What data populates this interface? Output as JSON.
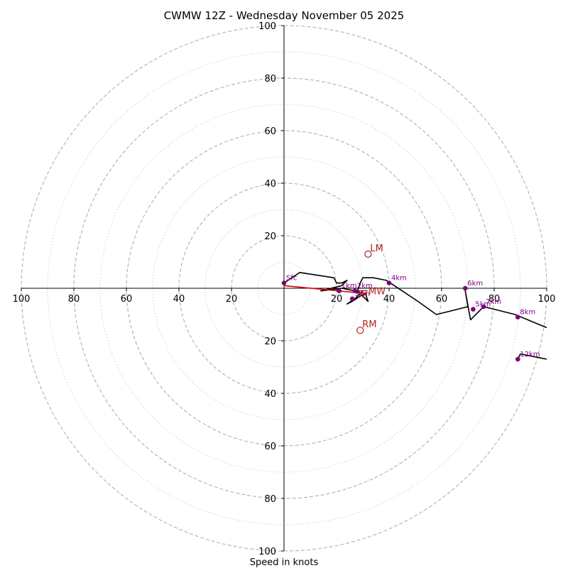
{
  "chart_data": {
    "type": "hodograph",
    "title": "CWMW 12Z - Wednesday November 05 2025",
    "xlabel": "Speed in knots",
    "max_speed": 100,
    "ring_major": [
      20,
      40,
      60,
      80,
      100
    ],
    "ring_minor": [
      10,
      30,
      50,
      70,
      90
    ],
    "x_tick_labels": [
      "100",
      "80",
      "60",
      "40",
      "20",
      "20",
      "40",
      "60",
      "80",
      "100"
    ],
    "x_tick_values": [
      -100,
      -80,
      -60,
      -40,
      -20,
      20,
      40,
      60,
      80,
      100
    ],
    "y_tick_labels": [
      "100",
      "80",
      "60",
      "40",
      "20",
      "20",
      "40",
      "60",
      "80",
      "100"
    ],
    "y_tick_values": [
      100,
      80,
      60,
      40,
      20,
      -20,
      -40,
      -60,
      -80,
      -100
    ],
    "colors": {
      "profile": "#000000",
      "shear_vector": "#dd0000",
      "height_points": "#800080",
      "storm_motion": "#b22222",
      "grid": "#b0b0b0"
    },
    "profile": [
      [
        0,
        2
      ],
      [
        6,
        6
      ],
      [
        19,
        4
      ],
      [
        20,
        2
      ],
      [
        22,
        2
      ],
      [
        24,
        3
      ],
      [
        22,
        1
      ],
      [
        14,
        -1
      ],
      [
        22,
        0
      ],
      [
        27,
        -1
      ],
      [
        29,
        -2
      ],
      [
        30,
        -1
      ],
      [
        27,
        -4
      ],
      [
        24,
        -6
      ],
      [
        26,
        -5
      ],
      [
        29,
        -3
      ],
      [
        31,
        -2
      ],
      [
        32,
        -5
      ],
      [
        30,
        -3
      ],
      [
        28,
        -1
      ],
      [
        29,
        2
      ],
      [
        30,
        4
      ],
      [
        34,
        4
      ],
      [
        39,
        3
      ],
      [
        45,
        -1
      ],
      [
        51,
        -5
      ],
      [
        58,
        -10
      ],
      [
        70,
        -7
      ],
      [
        69,
        -1
      ],
      [
        71,
        -12
      ],
      [
        76,
        -7
      ],
      [
        88,
        -10
      ],
      [
        100,
        -15
      ]
    ],
    "profile_upper": [
      [
        100,
        -27
      ],
      [
        90,
        -25
      ],
      [
        89,
        -27
      ]
    ],
    "height_points": [
      {
        "label": "Sfc",
        "u": 0,
        "v": 2
      },
      {
        "label": "1km",
        "u": 21,
        "v": -1
      },
      {
        "label": "2km",
        "u": 27,
        "v": -1
      },
      {
        "label": "3km",
        "u": 26,
        "v": -4
      },
      {
        "label": "4km",
        "u": 40,
        "v": 2
      },
      {
        "label": "5km",
        "u": 72,
        "v": -8
      },
      {
        "label": "6km",
        "u": 69,
        "v": 0
      },
      {
        "label": "7km",
        "u": 76,
        "v": -7
      },
      {
        "label": "8km",
        "u": 89,
        "v": -11
      },
      {
        "label": "12km",
        "u": 89,
        "v": -27
      }
    ],
    "shear_vector": {
      "from": [
        0,
        1
      ],
      "to": [
        31,
        -2
      ]
    },
    "storm_motion": [
      {
        "label": "LM",
        "u": 32,
        "v": 13
      },
      {
        "label": "MW",
        "u": 30,
        "v": -2
      },
      {
        "label": "RM",
        "u": 29,
        "v": -16
      }
    ]
  }
}
